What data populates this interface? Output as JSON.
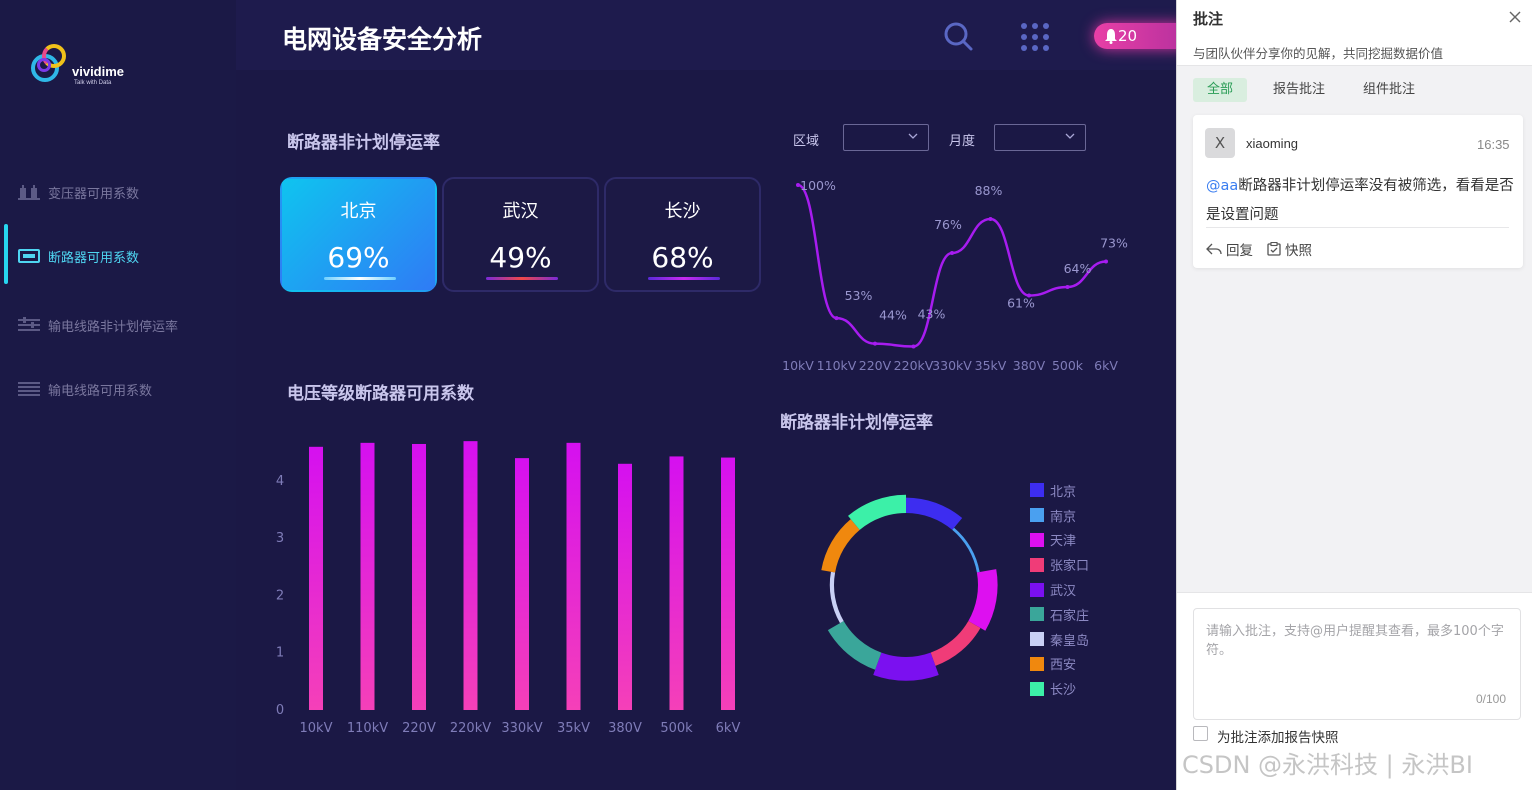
{
  "app": {
    "brand": "vividime",
    "brand_tagline": "Talk with Data",
    "title": "电网设备安全分析",
    "notification_count": "20"
  },
  "sidebar": {
    "items": [
      {
        "label": "变压器可用系数",
        "icon": "transformer-icon",
        "active": false
      },
      {
        "label": "断路器可用系数",
        "icon": "breaker-icon",
        "active": true
      },
      {
        "label": "输电线路非计划停运率",
        "icon": "line-outage-icon",
        "active": false
      },
      {
        "label": "输电线路可用系数",
        "icon": "line-available-icon",
        "active": false
      }
    ]
  },
  "section1": {
    "title": "断路器非计划停运率",
    "cards": [
      {
        "city": "北京",
        "value": "69%"
      },
      {
        "city": "武汉",
        "value": "49%"
      },
      {
        "city": "长沙",
        "value": "68%"
      }
    ]
  },
  "filters": {
    "region_label": "区域",
    "region_value": "",
    "month_label": "月度",
    "month_value": ""
  },
  "section2": {
    "title": "电压等级断路器可用系数"
  },
  "section3": {
    "title": "断路器非计划停运率"
  },
  "colors": {
    "bg": "#1b1845",
    "accent_cyan": "#27d6f0",
    "line": "#a71cf0",
    "bar_top": "#d510f0",
    "bar_bottom": "#f540b8"
  },
  "chart_data": [
    {
      "type": "line",
      "x": [
        "10kV",
        "110kV",
        "220V",
        "220kV",
        "330kV",
        "35kV",
        "380V",
        "500k",
        "6kV"
      ],
      "series": [
        {
          "values": [
            100,
            53,
            44,
            43,
            76,
            88,
            61,
            64,
            73
          ]
        }
      ],
      "data_labels": [
        "100%",
        "53%",
        "44%",
        "43%",
        "76%",
        "88%",
        "61%",
        "64%",
        "73%"
      ],
      "xlabel": "",
      "ylabel": "",
      "ylim": [
        40,
        100
      ],
      "grid": false
    },
    {
      "type": "bar",
      "categories": [
        "10kV",
        "110kV",
        "220V",
        "220kV",
        "330kV",
        "35kV",
        "380V",
        "500k",
        "6kV"
      ],
      "values": [
        4.65,
        4.72,
        4.7,
        4.75,
        4.45,
        4.72,
        4.35,
        4.48,
        4.46
      ],
      "yticks": [
        "0",
        "1",
        "2",
        "3",
        "4"
      ],
      "ylim": [
        0,
        5
      ],
      "grid": false
    },
    {
      "type": "pie",
      "variant": "rose-donut",
      "title": "断路器非计划停运率",
      "categories": [
        "北京",
        "南京",
        "天津",
        "张家口",
        "武汉",
        "石家庄",
        "秦皇岛",
        "西安",
        "长沙"
      ],
      "values": [
        11,
        11,
        11,
        11,
        11,
        11,
        11,
        11,
        11
      ],
      "radius_weights": [
        0.55,
        0.1,
        0.7,
        0.5,
        0.85,
        0.65,
        0.15,
        0.5,
        0.65
      ],
      "colors": [
        "#3d2df0",
        "#4aa0f0",
        "#dd10f0",
        "#f03c78",
        "#7b10f0",
        "#3aa69a",
        "#c9d0f5",
        "#f0880e",
        "#3cf0a8"
      ],
      "legend_position": "right"
    }
  ],
  "panel": {
    "title": "批注",
    "subtitle": "与团队伙伴分享你的见解，共同挖掘数据价值",
    "tabs": [
      {
        "label": "全部",
        "active": true
      },
      {
        "label": "报告批注",
        "active": false
      },
      {
        "label": "组件批注",
        "active": false
      }
    ],
    "comment": {
      "avatar": "X",
      "user": "xiaoming",
      "time": "16:35",
      "mention": "@aa",
      "text": "断路器非计划停运率没有被筛选，看看是否是设置问题",
      "reply": "回复",
      "snapshot": "快照"
    },
    "input_placeholder": "请输入批注，支持@用户提醒其查看，最多100个字符。",
    "char_count": "0/100",
    "snapshot_checkbox_label": "为批注添加报告快照"
  },
  "watermark": "CSDN @永洪科技 | 永洪BI"
}
